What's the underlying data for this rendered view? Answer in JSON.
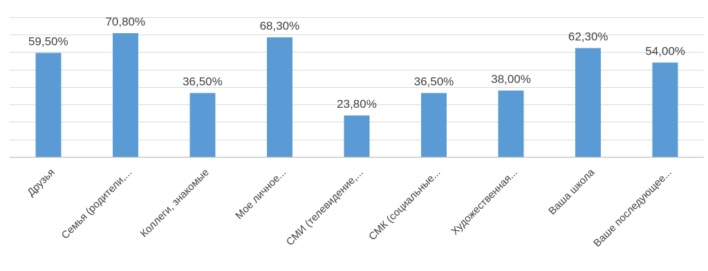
{
  "chart_data": {
    "type": "bar",
    "title": "",
    "xlabel": "",
    "ylabel": "",
    "ylim": [
      0,
      85
    ],
    "grid": true,
    "legend": "none",
    "colors": {
      "bar": "#5b9bd5",
      "grid": "#d9d9d9",
      "axis": "#bfbfbf",
      "text": "#404040"
    },
    "categories": [
      "Друзья",
      "Семья (родители,...",
      "Коллеги, знакомые",
      "Мое личное...",
      "СМИ (телевидение,...",
      "СМК (социальные...",
      "Художественная...",
      "Ваша школа",
      "Ваше последующее..."
    ],
    "values": [
      59.5,
      70.8,
      36.5,
      68.3,
      23.8,
      36.5,
      38.0,
      62.3,
      54.0
    ],
    "data_labels": [
      "59,50%",
      "70,80%",
      "36,50%",
      "68,30%",
      "23,80%",
      "36,50%",
      "38,00%",
      "62,30%",
      "54,00%"
    ]
  }
}
